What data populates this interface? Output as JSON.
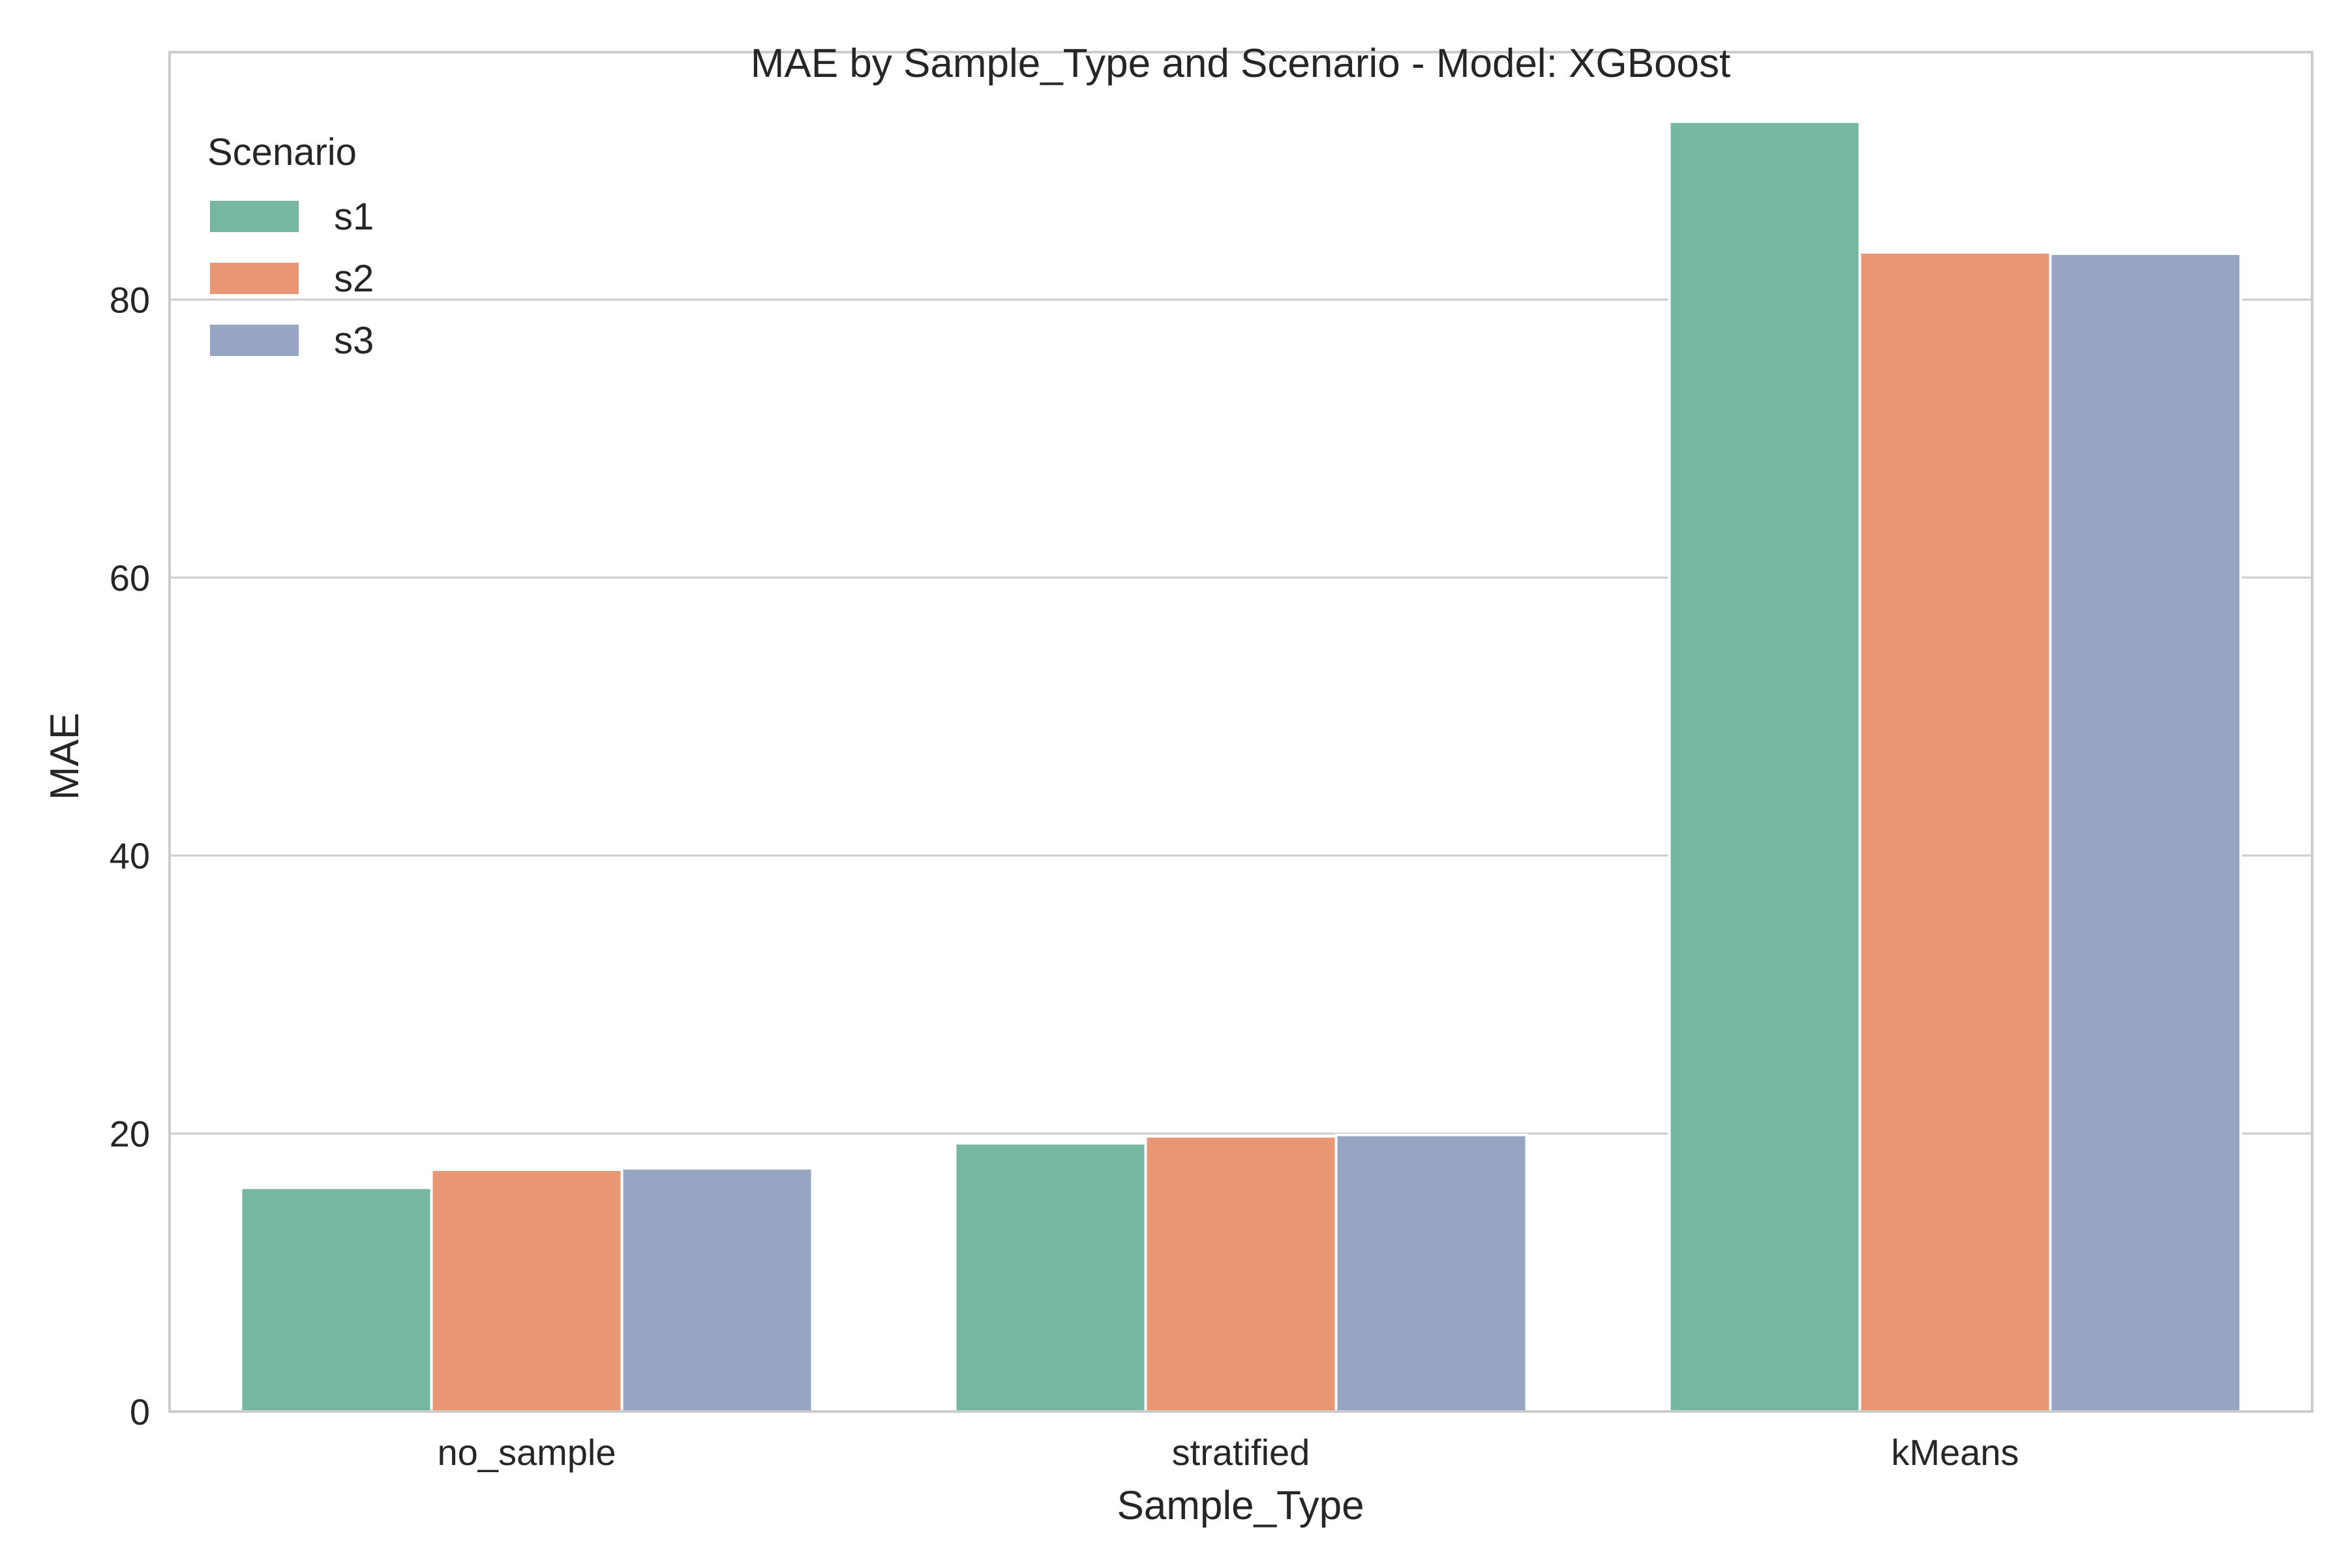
{
  "chart_data": {
    "type": "bar",
    "title": "MAE by Sample_Type and Scenario - Model: XGBoost",
    "xlabel": "Sample_Type",
    "ylabel": "MAE",
    "categories": [
      "no_sample",
      "stratified",
      "kMeans"
    ],
    "ylim": [
      0,
      97.8
    ],
    "yticks": [
      0,
      20,
      40,
      60,
      80
    ],
    "grid": true,
    "legend": {
      "title": "Scenario",
      "placement": "top-left"
    },
    "series": [
      {
        "name": "s1",
        "color": "#76b7a0",
        "values": [
          16.1,
          19.3,
          92.8
        ]
      },
      {
        "name": "s2",
        "color": "#e99675",
        "values": [
          17.4,
          19.8,
          83.4
        ]
      },
      {
        "name": "s3",
        "color": "#97a5c3",
        "values": [
          17.5,
          19.9,
          83.3
        ]
      }
    ]
  }
}
